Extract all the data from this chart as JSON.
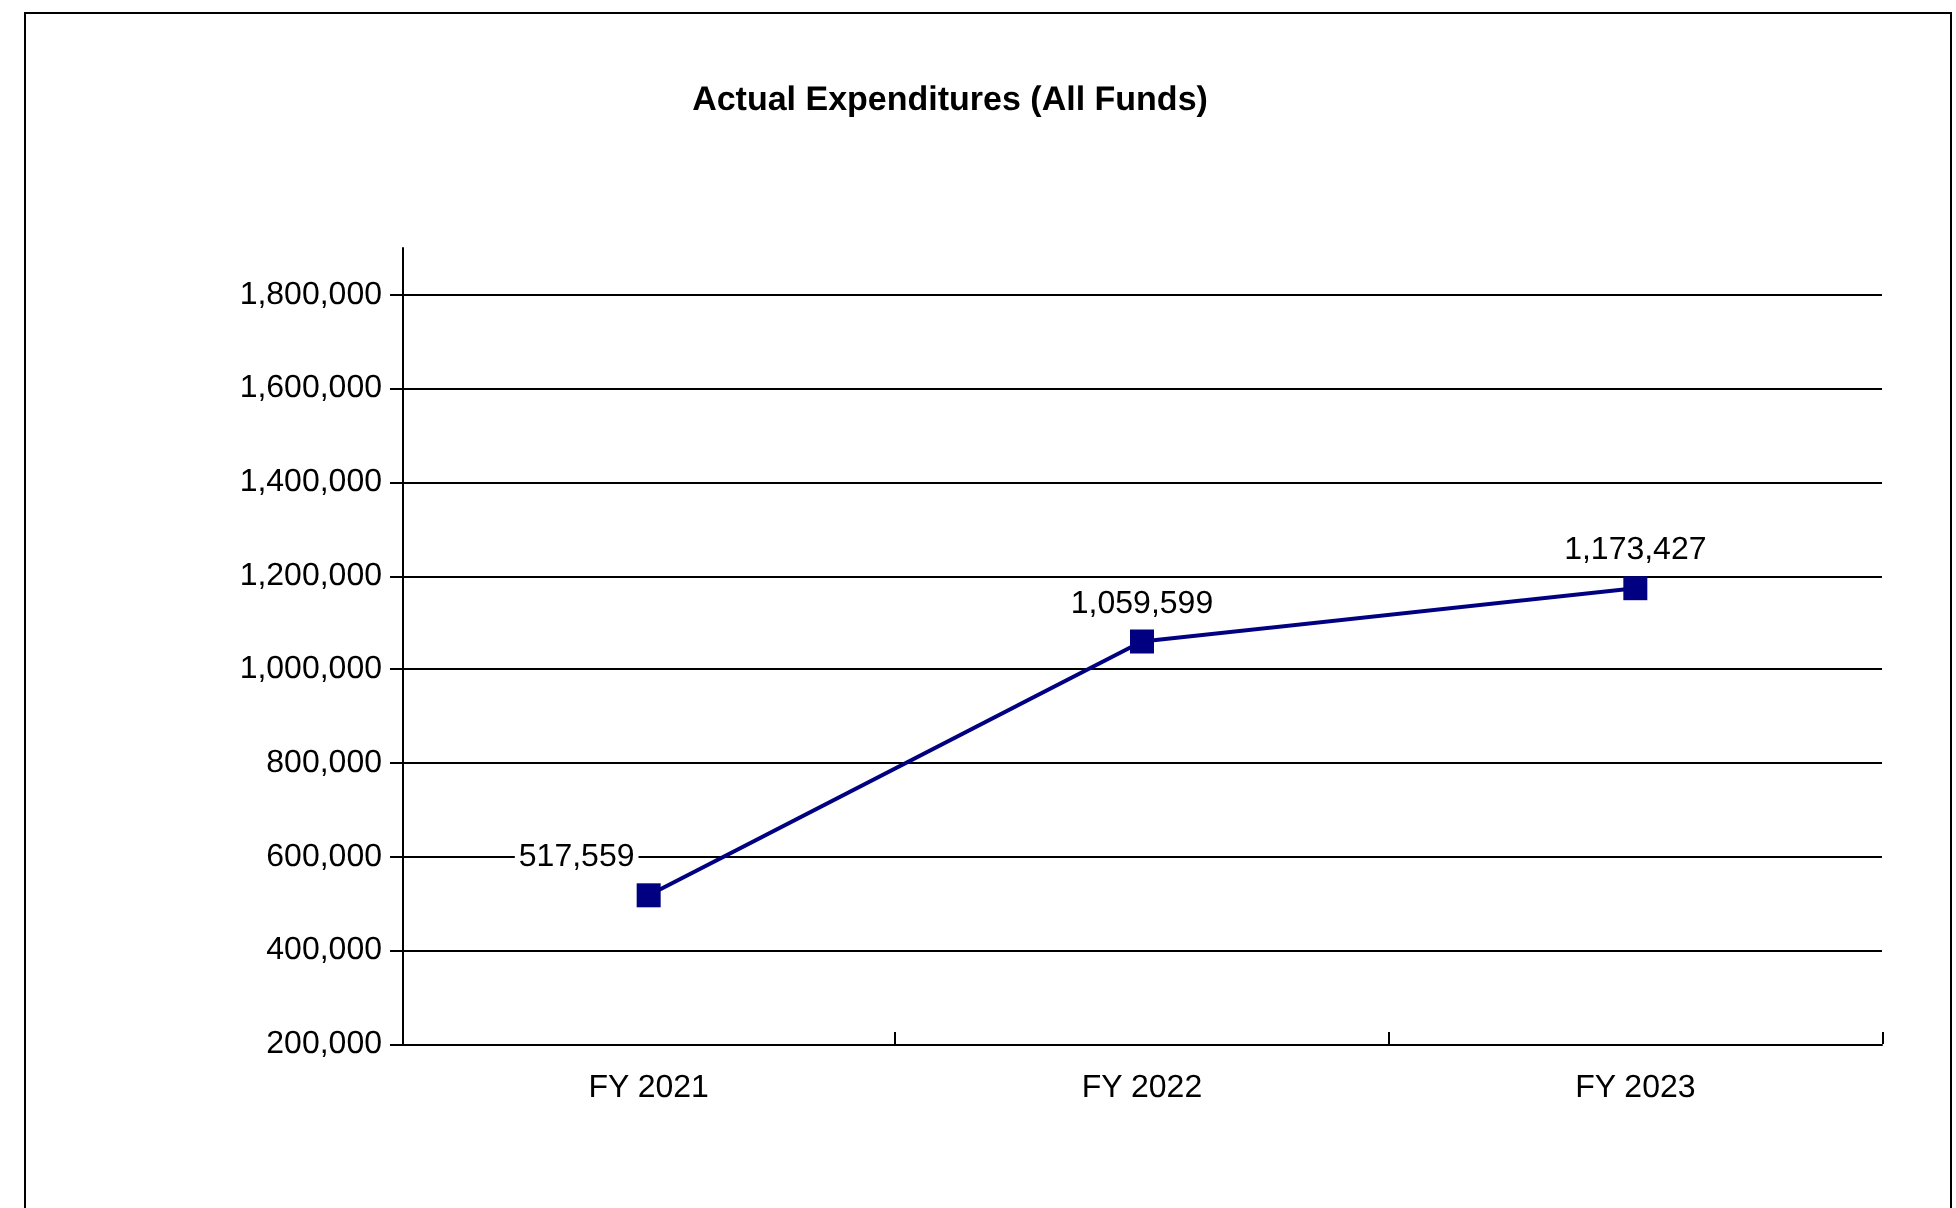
{
  "chart_data": {
    "type": "line",
    "title": "Actual Expenditures (All Funds)",
    "categories": [
      "FY 2021",
      "FY 2022",
      "FY 2023"
    ],
    "series": [
      {
        "color": "#000080",
        "values": [
          517559,
          1059599,
          1173427
        ],
        "value_labels": [
          "517,559",
          "1,059,599",
          "1,173,427"
        ]
      }
    ],
    "ylim": [
      200000,
      1900000
    ],
    "yticks": [
      {
        "value": 200000,
        "label": "200,000"
      },
      {
        "value": 400000,
        "label": "400,000"
      },
      {
        "value": 600000,
        "label": "600,000"
      },
      {
        "value": 800000,
        "label": "800,000"
      },
      {
        "value": 1000000,
        "label": "1,000,000"
      },
      {
        "value": 1200000,
        "label": "1,200,000"
      },
      {
        "value": 1400000,
        "label": "1,400,000"
      },
      {
        "value": 1600000,
        "label": "1,600,000"
      },
      {
        "value": 1800000,
        "label": "1,800,000"
      }
    ],
    "grid": "y",
    "marker": "square",
    "line_style": "solid"
  }
}
